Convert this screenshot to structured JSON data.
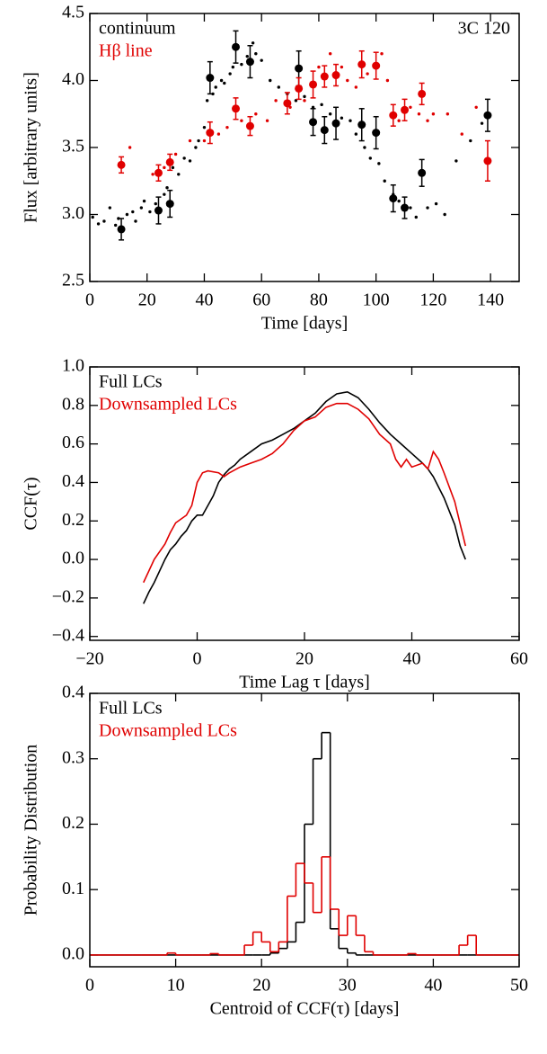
{
  "chart_data": [
    {
      "type": "scatter",
      "xlabel": "Time [days]",
      "ylabel": "Flux [arbitrary units]",
      "annotation": "3C 120",
      "xlim": [
        0,
        150
      ],
      "ylim": [
        2.5,
        4.5
      ],
      "xticks": [
        0,
        20,
        40,
        60,
        80,
        100,
        120,
        140
      ],
      "yticks": [
        2.5,
        {
          "value": 3,
          "label": "3.0"
        },
        3.5,
        {
          "value": 4,
          "label": "4.0"
        },
        4.5
      ],
      "series": [
        {
          "name": "continuum",
          "color": "#000000",
          "x": [
            1,
            3,
            5,
            7,
            9,
            10,
            13,
            15,
            16,
            18,
            19,
            21,
            23,
            26,
            27,
            29,
            31,
            33,
            35,
            37,
            38,
            40,
            41,
            43,
            44,
            46,
            47,
            49,
            50,
            53,
            55,
            57,
            58,
            60,
            63,
            66,
            69,
            72,
            75,
            78,
            81,
            84,
            88,
            91,
            93,
            96,
            98,
            101,
            103,
            106,
            108,
            112,
            114,
            118,
            121,
            124,
            128,
            133,
            137
          ],
          "values": [
            2.98,
            2.93,
            2.95,
            3.05,
            2.92,
            2.97,
            3.0,
            3.02,
            2.95,
            3.05,
            3.1,
            3.02,
            3.08,
            3.15,
            3.2,
            3.35,
            3.3,
            3.42,
            3.4,
            3.5,
            3.55,
            3.65,
            3.85,
            3.9,
            3.95,
            4.0,
            3.98,
            4.05,
            4.1,
            4.12,
            4.18,
            4.28,
            4.2,
            4.15,
            4.0,
            3.95,
            3.9,
            3.85,
            3.88,
            3.8,
            3.82,
            3.75,
            3.72,
            3.7,
            3.6,
            3.5,
            3.42,
            3.38,
            3.25,
            3.15,
            3.1,
            3.05,
            2.98,
            3.05,
            3.08,
            3.0,
            3.4,
            3.55,
            3.68
          ],
          "sample_x": [
            11,
            24,
            28,
            42,
            51,
            56,
            73,
            78,
            82,
            86,
            95,
            100,
            106,
            110,
            116,
            139
          ],
          "sample_values": [
            2.89,
            3.03,
            3.08,
            4.02,
            4.25,
            4.14,
            4.09,
            3.69,
            3.63,
            3.68,
            3.67,
            3.61,
            3.12,
            3.05,
            3.31,
            3.74
          ],
          "sample_errors": [
            0.08,
            0.1,
            0.1,
            0.12,
            0.12,
            0.12,
            0.13,
            0.1,
            0.1,
            0.12,
            0.12,
            0.12,
            0.1,
            0.08,
            0.1,
            0.12
          ]
        },
        {
          "name": "Hβ line",
          "color": "#e00000",
          "x": [
            14,
            22,
            26,
            30,
            35,
            40,
            45,
            48,
            53,
            58,
            62,
            65,
            70,
            75,
            80,
            84,
            88,
            90,
            93,
            97,
            102,
            104,
            108,
            112,
            115,
            118,
            120,
            125,
            130,
            135
          ],
          "values": [
            3.5,
            3.3,
            3.35,
            3.45,
            3.55,
            3.55,
            3.6,
            3.65,
            3.7,
            3.75,
            3.7,
            3.85,
            3.8,
            3.85,
            4.1,
            4.2,
            4.1,
            4.0,
            3.95,
            4.05,
            4.2,
            4.0,
            3.7,
            3.8,
            3.75,
            3.7,
            3.75,
            3.75,
            3.6,
            3.8
          ],
          "sample_x": [
            11,
            24,
            28,
            42,
            51,
            56,
            69,
            73,
            78,
            82,
            86,
            95,
            100,
            106,
            110,
            116,
            139
          ],
          "sample_values": [
            3.37,
            3.31,
            3.39,
            3.61,
            3.79,
            3.66,
            3.83,
            3.94,
            3.97,
            4.03,
            4.04,
            4.12,
            4.11,
            3.74,
            3.78,
            3.9,
            3.4
          ],
          "sample_errors": [
            0.06,
            0.06,
            0.06,
            0.08,
            0.08,
            0.07,
            0.08,
            0.08,
            0.1,
            0.08,
            0.08,
            0.1,
            0.1,
            0.08,
            0.08,
            0.08,
            0.15
          ]
        }
      ]
    },
    {
      "type": "line",
      "xlabel": "Time Lag τ [days]",
      "ylabel": "CCF(τ)",
      "xlim": [
        -20,
        60
      ],
      "ylim": [
        -0.42,
        1.0
      ],
      "xticks": [
        {
          "value": -20,
          "label": "−20"
        },
        0,
        20,
        40,
        60
      ],
      "yticks": [
        {
          "value": -0.4,
          "label": "−0.4"
        },
        {
          "value": -0.2,
          "label": "−0.2"
        },
        {
          "value": 0,
          "label": "0.0"
        },
        0.2,
        0.4,
        0.6,
        0.8,
        {
          "value": 1,
          "label": "1.0"
        }
      ],
      "series": [
        {
          "name": "Full LCs",
          "color": "#000000",
          "x": [
            -10,
            -9,
            -8,
            -7,
            -6,
            -5,
            -4,
            -3,
            -2,
            -1,
            0,
            1,
            2,
            3,
            4,
            5,
            6,
            7,
            8,
            10,
            12,
            14,
            16,
            18,
            20,
            22,
            24,
            26,
            28,
            30,
            32,
            34,
            36,
            38,
            40,
            42,
            43,
            44,
            46,
            48,
            49,
            50
          ],
          "values": [
            -0.23,
            -0.17,
            -0.12,
            -0.06,
            0.0,
            0.05,
            0.08,
            0.12,
            0.15,
            0.2,
            0.23,
            0.23,
            0.28,
            0.33,
            0.4,
            0.44,
            0.47,
            0.49,
            0.52,
            0.56,
            0.6,
            0.62,
            0.65,
            0.68,
            0.72,
            0.76,
            0.82,
            0.86,
            0.87,
            0.84,
            0.78,
            0.71,
            0.65,
            0.6,
            0.55,
            0.5,
            0.47,
            0.43,
            0.32,
            0.18,
            0.07,
            0.0
          ]
        },
        {
          "name": "Downsampled LCs",
          "color": "#e00000",
          "x": [
            -10,
            -8,
            -6,
            -5,
            -4,
            -2,
            -1,
            0,
            1,
            2,
            4,
            5,
            6,
            8,
            10,
            12,
            14,
            16,
            18,
            20,
            22,
            24,
            26,
            28,
            30,
            32,
            34,
            36,
            37,
            38,
            39,
            40,
            42,
            43,
            44,
            45,
            46,
            48,
            50
          ],
          "values": [
            -0.12,
            0.0,
            0.08,
            0.14,
            0.19,
            0.23,
            0.28,
            0.4,
            0.45,
            0.46,
            0.45,
            0.43,
            0.45,
            0.48,
            0.5,
            0.52,
            0.55,
            0.6,
            0.67,
            0.72,
            0.74,
            0.79,
            0.81,
            0.81,
            0.78,
            0.73,
            0.65,
            0.6,
            0.52,
            0.48,
            0.52,
            0.48,
            0.5,
            0.47,
            0.56,
            0.52,
            0.45,
            0.3,
            0.07
          ]
        }
      ]
    },
    {
      "type": "histogram",
      "xlabel": "Centroid of CCF(τ) [days]",
      "ylabel": "Probability Distribution",
      "xlim": [
        0,
        50
      ],
      "ylim": [
        -0.018,
        0.4
      ],
      "xticks": [
        0,
        10,
        20,
        30,
        40,
        50
      ],
      "yticks": [
        {
          "value": 0,
          "label": "0.0"
        },
        0.1,
        0.2,
        0.3,
        0.4
      ],
      "bins": [
        0,
        1,
        2,
        3,
        4,
        5,
        6,
        7,
        8,
        9,
        10,
        11,
        12,
        13,
        14,
        15,
        16,
        17,
        18,
        19,
        20,
        21,
        22,
        23,
        24,
        25,
        26,
        27,
        28,
        29,
        30,
        31,
        32,
        33,
        34,
        35,
        36,
        37,
        38,
        39,
        40,
        41,
        42,
        43,
        44,
        45,
        46,
        47,
        48,
        49,
        50
      ],
      "series": [
        {
          "name": "Full LCs",
          "color": "#000000",
          "values": [
            0,
            0,
            0,
            0,
            0,
            0,
            0,
            0,
            0,
            0,
            0,
            0,
            0,
            0,
            0,
            0,
            0,
            0,
            0,
            0,
            0,
            0.003,
            0.01,
            0.02,
            0.05,
            0.2,
            0.3,
            0.34,
            0.04,
            0.01,
            0.003,
            0,
            0,
            0,
            0,
            0,
            0,
            0,
            0,
            0,
            0,
            0,
            0,
            0,
            0,
            0,
            0,
            0,
            0,
            0
          ]
        },
        {
          "name": "Downsampled LCs",
          "color": "#e00000",
          "values": [
            0,
            0,
            0,
            0,
            0,
            0,
            0,
            0,
            0,
            0.003,
            0,
            0,
            0,
            0,
            0.002,
            0,
            0,
            0,
            0.015,
            0.035,
            0.02,
            0.005,
            0.02,
            0.09,
            0.14,
            0.11,
            0.065,
            0.15,
            0.07,
            0.03,
            0.06,
            0.03,
            0.005,
            0,
            0,
            0,
            0,
            0.002,
            0,
            0,
            0,
            0,
            0,
            0.015,
            0.03,
            0,
            0,
            0,
            0,
            0
          ]
        }
      ]
    }
  ]
}
